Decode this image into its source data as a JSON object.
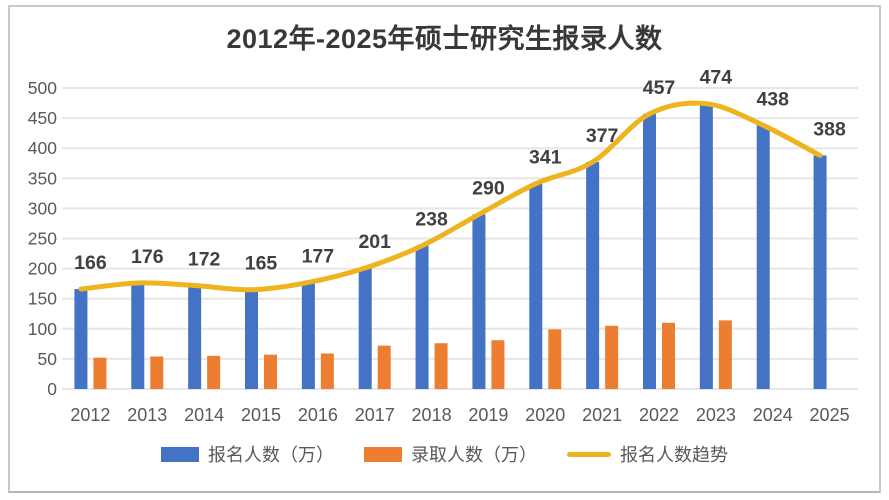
{
  "title": "2012年-2025年硕士研究生报录人数",
  "chart_data": {
    "type": "bar",
    "subtype": "bar-line-combo",
    "title": "2012年-2025年硕士研究生报录人数",
    "categories": [
      "2012",
      "2013",
      "2014",
      "2015",
      "2016",
      "2017",
      "2018",
      "2019",
      "2020",
      "2021",
      "2022",
      "2023",
      "2024",
      "2025"
    ],
    "series": [
      {
        "name": "报名人数（万）",
        "type": "bar",
        "color": "#4472C4",
        "values": [
          166,
          176,
          172,
          165,
          177,
          201,
          238,
          290,
          341,
          377,
          457,
          474,
          438,
          388
        ]
      },
      {
        "name": "录取人数（万）",
        "type": "bar",
        "color": "#ED7D31",
        "values": [
          52,
          54,
          55,
          57,
          59,
          72,
          76,
          81,
          99,
          105,
          110,
          114,
          null,
          null
        ]
      },
      {
        "name": "报名人数趋势",
        "type": "line",
        "color": "#EDB41F",
        "values": [
          166,
          176,
          172,
          165,
          177,
          201,
          238,
          290,
          341,
          377,
          457,
          474,
          438,
          388
        ]
      }
    ],
    "data_labels": [
      "166",
      "176",
      "172",
      "165",
      "177",
      "201",
      "238",
      "290",
      "341",
      "377",
      "457",
      "474",
      "438",
      "388"
    ],
    "y_axis": {
      "min": 0,
      "max": 500,
      "step": 50,
      "ticks": [
        "0",
        "50",
        "100",
        "150",
        "200",
        "250",
        "300",
        "350",
        "400",
        "450",
        "500"
      ]
    },
    "grid": true,
    "legend_position": "bottom"
  },
  "colors": {
    "grid": "#e6e6e6",
    "axis_text": "#595959",
    "label_text": "#404040",
    "title_text": "#383838",
    "frame_border": "#c9c9c9"
  }
}
